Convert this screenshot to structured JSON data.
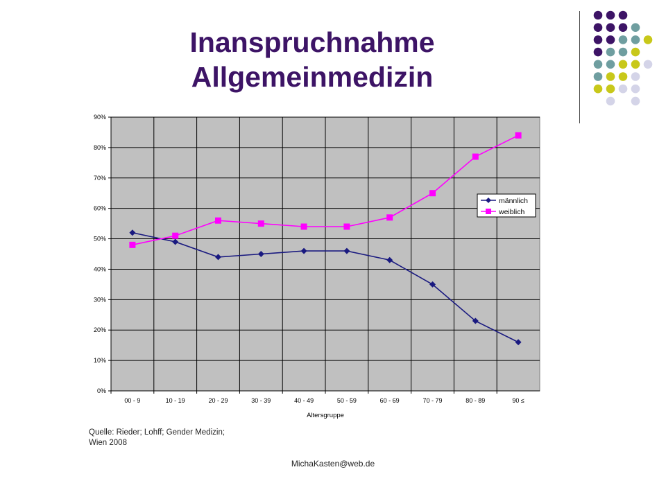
{
  "slide": {
    "title_line1": "Inanspruchnahme",
    "title_line2": "Allgemeinmedizin",
    "source_line1": "Quelle: Rieder; Lohff; Gender Medizin;",
    "source_line2": "Wien 2008",
    "footer": "MichaKasten@web.de"
  },
  "colors": {
    "title": "#3d1466",
    "dot_purple": "#3d1466",
    "dot_teal": "#6f9ea0",
    "dot_yellow": "#c8c81a",
    "dot_lavender": "#d4d4e8",
    "plot_bg": "#c0c0c0"
  },
  "chart_data": {
    "type": "line",
    "title": "",
    "xlabel": "Altersgruppe",
    "ylabel": "",
    "categories": [
      "00 - 9",
      "10 - 19",
      "20 - 29",
      "30 - 39",
      "40 - 49",
      "50 - 59",
      "60 - 69",
      "70 - 79",
      "80 - 89",
      "90 ≤"
    ],
    "ylim": [
      0,
      90
    ],
    "yticks": [
      "0%",
      "10%",
      "20%",
      "30%",
      "40%",
      "50%",
      "60%",
      "70%",
      "80%",
      "90%"
    ],
    "grid": true,
    "legend": "right",
    "series": [
      {
        "name": "männlich",
        "values": [
          52,
          49,
          44,
          45,
          46,
          46,
          43,
          35,
          23,
          16
        ],
        "color": "#1a1a80",
        "marker": "diamond"
      },
      {
        "name": "weiblich",
        "values": [
          48,
          51,
          56,
          55,
          54,
          54,
          57,
          65,
          77,
          84
        ],
        "color": "#ff00ff",
        "marker": "square"
      }
    ]
  }
}
